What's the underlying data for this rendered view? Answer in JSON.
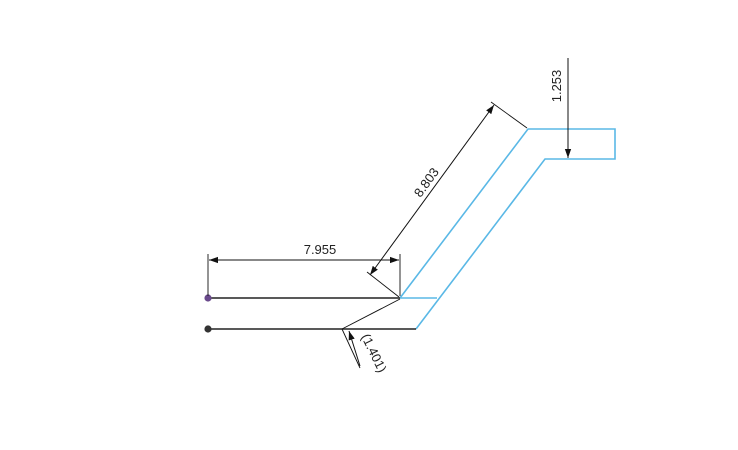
{
  "colors": {
    "profile": "#5ab8e6",
    "wire": "#222222",
    "dimension": "#111111",
    "endpoint_top": "#6a4a8c",
    "endpoint_bottom": "#333333"
  },
  "dimensions": {
    "horizontal": "7.955",
    "diagonal": "8.803",
    "vertical": "1.253",
    "reference_offset": "(1.401)"
  }
}
